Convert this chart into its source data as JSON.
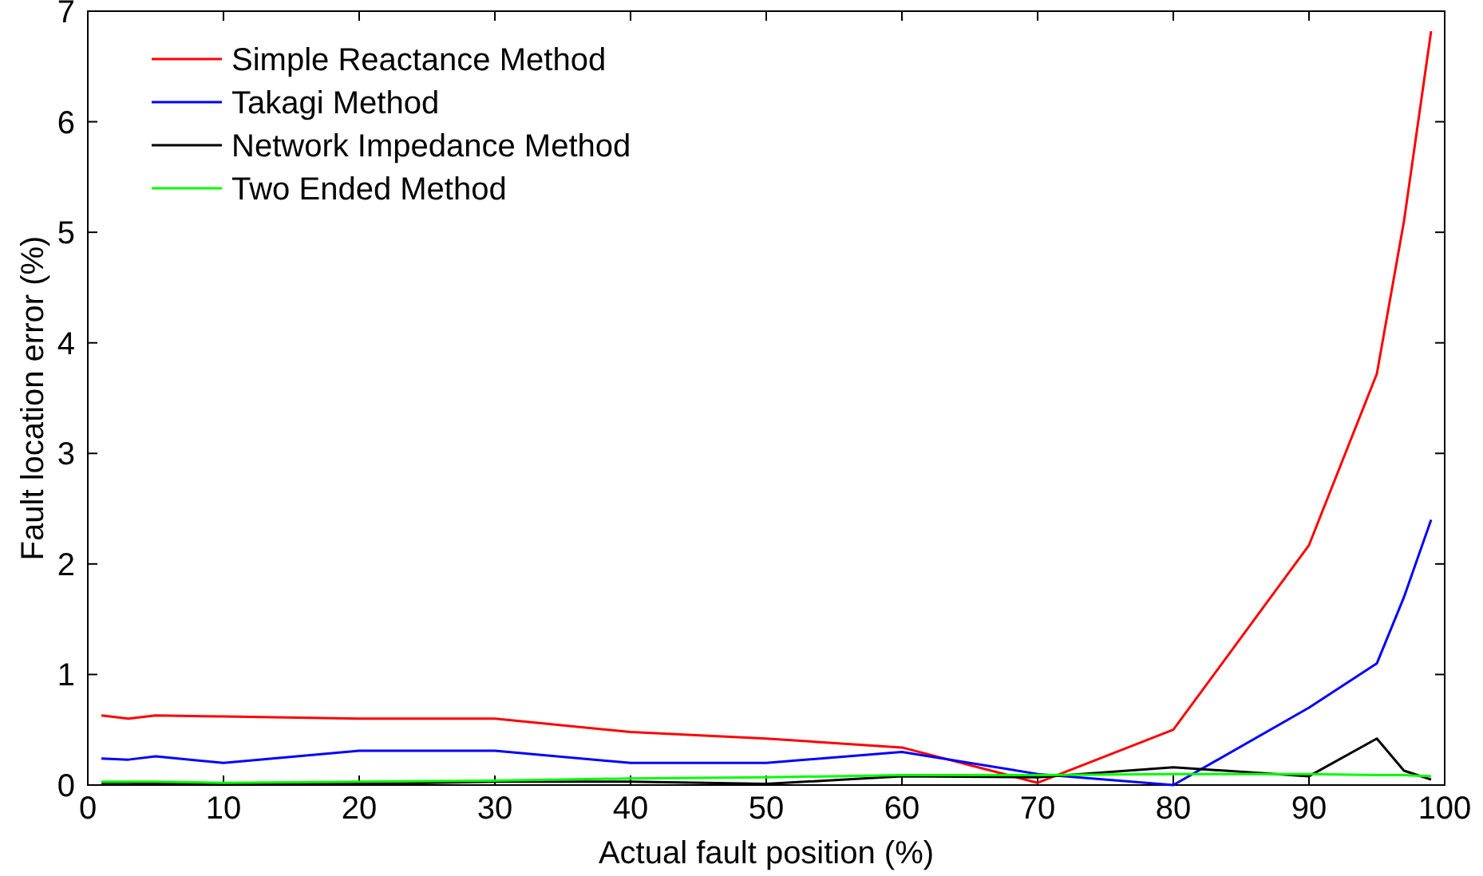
{
  "chart_data": {
    "type": "line",
    "xlabel": "Actual fault position (%)",
    "ylabel": "Fault location error (%)",
    "x": [
      1,
      3,
      5,
      10,
      20,
      30,
      40,
      50,
      60,
      70,
      80,
      90,
      95,
      97,
      99
    ],
    "series": [
      {
        "name": "Simple Reactance Method",
        "color": "#ff0000",
        "values": [
          0.63,
          0.6,
          0.63,
          0.62,
          0.6,
          0.6,
          0.48,
          0.42,
          0.34,
          0.02,
          0.5,
          2.17,
          3.72,
          5.1,
          6.82
        ]
      },
      {
        "name": "Takagi Method",
        "color": "#0000ff",
        "values": [
          0.24,
          0.23,
          0.26,
          0.2,
          0.31,
          0.31,
          0.2,
          0.2,
          0.3,
          0.1,
          0.0,
          0.7,
          1.1,
          1.7,
          2.4
        ]
      },
      {
        "name": "Network Impedance Method",
        "color": "#000000",
        "values": [
          0.02,
          0.02,
          0.01,
          0.01,
          0.01,
          0.03,
          0.03,
          0.01,
          0.08,
          0.07,
          0.16,
          0.08,
          0.42,
          0.13,
          0.05
        ]
      },
      {
        "name": "Two Ended Method",
        "color": "#00ff00",
        "values": [
          0.03,
          0.03,
          0.03,
          0.02,
          0.03,
          0.04,
          0.06,
          0.07,
          0.09,
          0.09,
          0.1,
          0.1,
          0.09,
          0.09,
          0.08
        ]
      }
    ],
    "xlim": [
      0,
      100
    ],
    "xticks": [
      0,
      10,
      20,
      30,
      40,
      50,
      60,
      70,
      80,
      90,
      100
    ],
    "ylim": [
      0,
      7
    ],
    "yticks": [
      0,
      1,
      2,
      3,
      4,
      5,
      6,
      7
    ],
    "grid": false,
    "legend": "top left",
    "marker": "none",
    "line_style": "solid"
  }
}
